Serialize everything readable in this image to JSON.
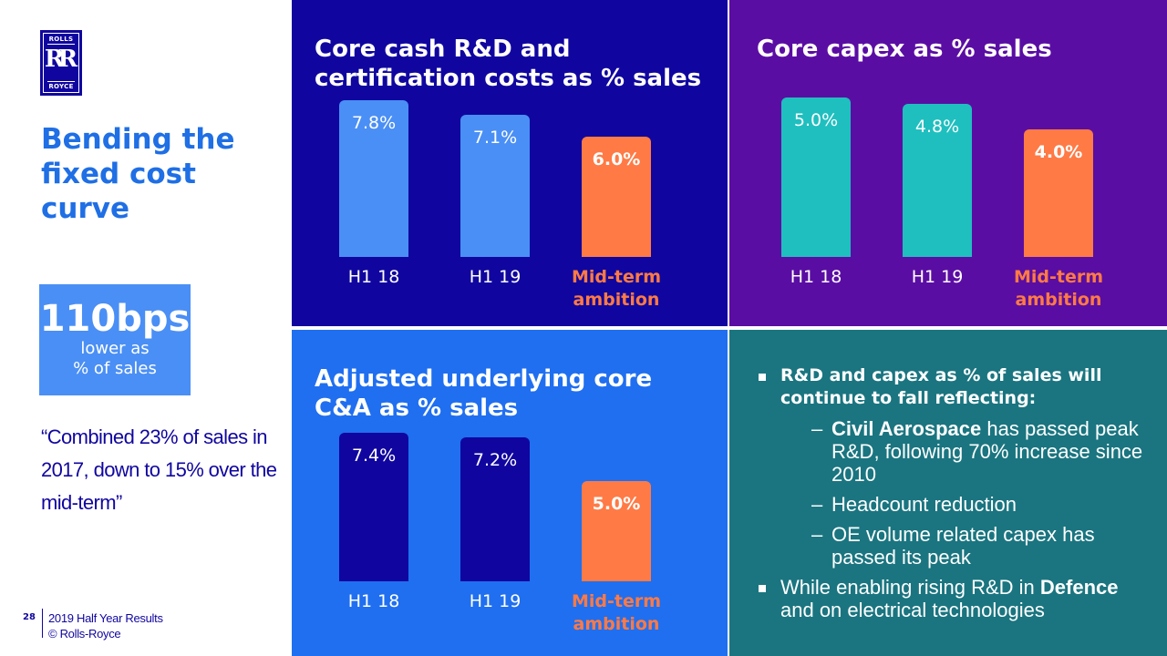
{
  "logo": {
    "top_text": "ROLLS",
    "monogram": "RR",
    "bottom_text": "ROYCE"
  },
  "headline": "Bending the fixed cost curve",
  "highlight": {
    "big": "110bps",
    "line1": "lower as",
    "line2": "% of sales"
  },
  "quote": "“Combined 23% of sales in 2017, down to 15% over the mid-term”",
  "footer": {
    "page": "28",
    "line1": "2019 Half Year Results",
    "line2": "© Rolls-Royce"
  },
  "colors": {
    "rd_panel": "#10069f",
    "capex_panel": "#5a0da3",
    "ca_panel": "#1f6ff0",
    "text_panel": "#1a7580",
    "ambition": "#ff7a45",
    "rd_bars": "#4a8ff5",
    "capex_bars": "#1fbfbf",
    "ca_bars": "#10069f"
  },
  "chart_data": [
    {
      "type": "bar",
      "title": "Core cash R&D and certification costs as % sales",
      "categories": [
        "H1 18",
        "H1 19",
        "Mid-term ambition"
      ],
      "values": [
        7.8,
        7.1,
        6.0
      ],
      "labels": [
        "7.8%",
        "7.1%",
        "6.0%"
      ],
      "unit": "%"
    },
    {
      "type": "bar",
      "title": "Core capex as % sales",
      "categories": [
        "H1 18",
        "H1 19",
        "Mid-term ambition"
      ],
      "values": [
        5.0,
        4.8,
        4.0
      ],
      "labels": [
        "5.0%",
        "4.8%",
        "4.0%"
      ],
      "unit": "%"
    },
    {
      "type": "bar",
      "title": "Adjusted underlying core C&A as % sales",
      "categories": [
        "H1 18",
        "H1 19",
        "Mid-term ambition"
      ],
      "values": [
        7.4,
        7.2,
        5.0
      ],
      "labels": [
        "7.4%",
        "7.2%",
        "5.0%"
      ],
      "unit": "%"
    }
  ],
  "commentary": {
    "b1": "R&D and capex as % of sales will continue to fall reflecting:",
    "s1_bold": "Civil Aerospace",
    "s1_rest": " has passed peak R&D, following 70% increase since 2010",
    "s2": "Headcount reduction",
    "s3": "OE volume related capex has passed its peak",
    "b2_pre": "While enabling rising R&D in ",
    "b2_bold": "Defence",
    "b2_post": " and on electrical technologies",
    "dash": "–"
  }
}
